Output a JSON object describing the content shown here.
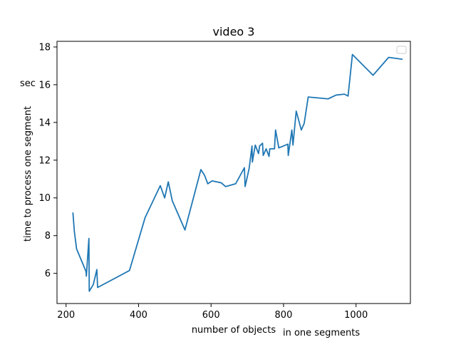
{
  "chart_data": {
    "type": "line",
    "title": "video 3",
    "xlabel": "number of objects",
    "xlabel_suffix": "in one segments",
    "ylabel": "time to process one segment",
    "ylabel_unit": "sec",
    "xlim": [
      175,
      1150
    ],
    "ylim": [
      4.4,
      18.3
    ],
    "xticks": [
      200,
      400,
      600,
      800,
      1000
    ],
    "yticks": [
      6,
      8,
      10,
      12,
      14,
      16,
      18
    ],
    "legend": "upper right, empty",
    "grid": false,
    "series": [
      {
        "color": "#1f77b4",
        "points": [
          [
            219,
            9.2
          ],
          [
            223,
            8.2
          ],
          [
            229,
            7.3
          ],
          [
            255,
            6.1
          ],
          [
            256,
            5.85
          ],
          [
            263,
            7.85
          ],
          [
            264,
            5.05
          ],
          [
            275,
            5.4
          ],
          [
            285,
            6.2
          ],
          [
            287,
            5.25
          ],
          [
            375,
            6.15
          ],
          [
            418,
            8.95
          ],
          [
            460,
            10.65
          ],
          [
            472,
            10.0
          ],
          [
            482,
            10.85
          ],
          [
            493,
            9.85
          ],
          [
            528,
            8.3
          ],
          [
            572,
            11.5
          ],
          [
            582,
            11.2
          ],
          [
            591,
            10.75
          ],
          [
            603,
            10.9
          ],
          [
            628,
            10.8
          ],
          [
            640,
            10.6
          ],
          [
            668,
            10.75
          ],
          [
            692,
            11.6
          ],
          [
            694,
            10.6
          ],
          [
            705,
            11.55
          ],
          [
            713,
            12.75
          ],
          [
            714,
            11.9
          ],
          [
            722,
            12.8
          ],
          [
            731,
            12.35
          ],
          [
            734,
            12.75
          ],
          [
            742,
            12.9
          ],
          [
            744,
            12.25
          ],
          [
            752,
            12.6
          ],
          [
            760,
            12.2
          ],
          [
            762,
            12.6
          ],
          [
            775,
            12.6
          ],
          [
            778,
            13.6
          ],
          [
            787,
            12.65
          ],
          [
            812,
            12.85
          ],
          [
            813,
            12.25
          ],
          [
            823,
            13.6
          ],
          [
            826,
            12.8
          ],
          [
            835,
            14.6
          ],
          [
            849,
            13.6
          ],
          [
            857,
            13.95
          ],
          [
            868,
            15.35
          ],
          [
            923,
            15.25
          ],
          [
            945,
            15.45
          ],
          [
            968,
            15.5
          ],
          [
            978,
            15.4
          ],
          [
            990,
            17.6
          ],
          [
            1047,
            16.5
          ],
          [
            1090,
            17.45
          ],
          [
            1127,
            17.35
          ]
        ]
      }
    ]
  }
}
